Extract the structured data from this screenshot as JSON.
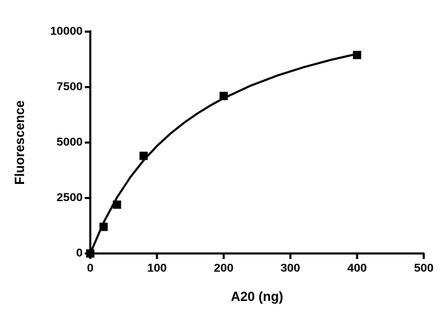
{
  "chart_data": {
    "type": "scatter",
    "x_label": "A20 (ng)",
    "y_label": "Fluorescence",
    "xlim": [
      0,
      500
    ],
    "xticks": [
      0,
      100,
      200,
      300,
      400,
      500
    ],
    "ylim": [
      0,
      10000
    ],
    "yticks": [
      0,
      2500,
      5000,
      7500,
      10000
    ],
    "series": [
      {
        "style": "markers",
        "color": "#000000",
        "x": [
          0,
          20,
          40,
          80,
          200,
          400
        ],
        "values": [
          0,
          1200,
          2200,
          4400,
          7100,
          8950
        ]
      },
      {
        "style": "line",
        "color": "#000000",
        "x": [
          0,
          20,
          40,
          60,
          80,
          100,
          120,
          140,
          160,
          180,
          200,
          240,
          280,
          320,
          360,
          400
        ],
        "values": [
          0,
          1400,
          2520,
          3436,
          4200,
          4846,
          5400,
          5880,
          6300,
          6671,
          7000,
          7560,
          8018,
          8400,
          8723,
          9000
        ]
      }
    ]
  }
}
